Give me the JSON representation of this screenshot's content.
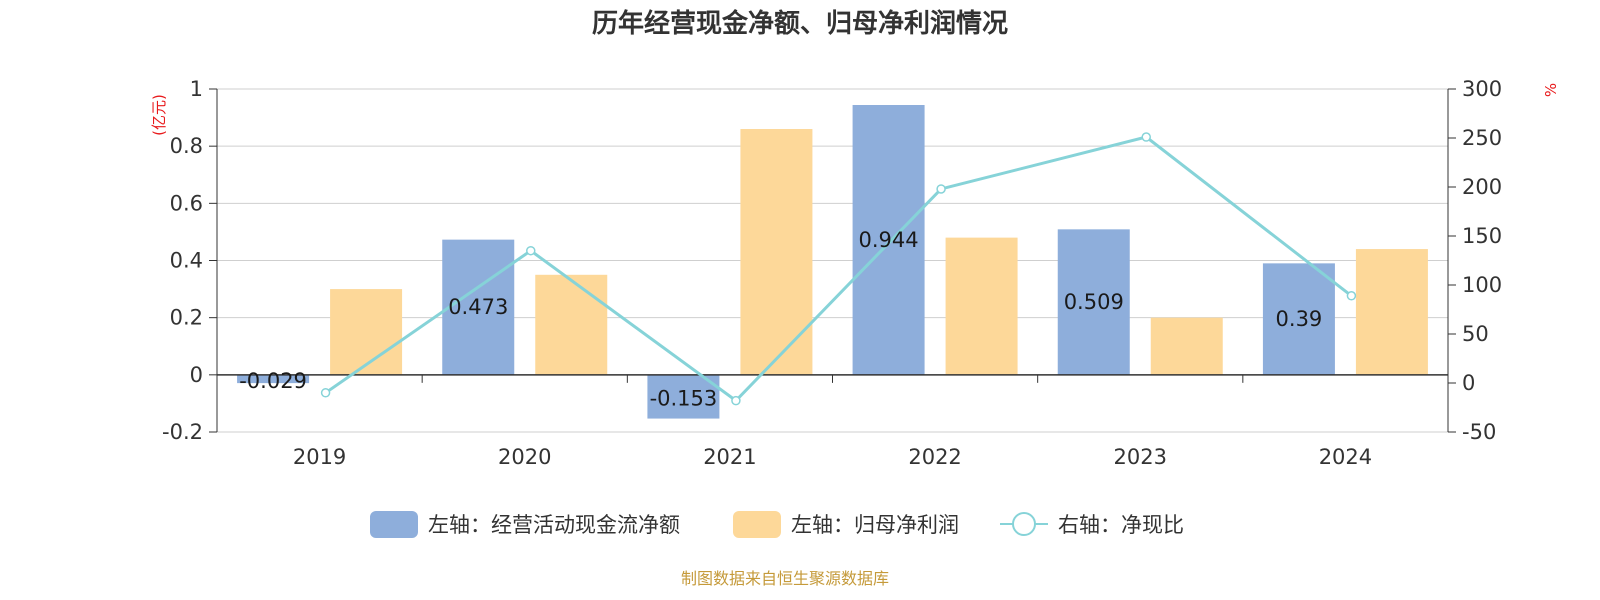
{
  "chart_data": {
    "type": "bar",
    "title": "历年经营现金净额、归母净利润情况",
    "categories": [
      "2019",
      "2020",
      "2021",
      "2022",
      "2023",
      "2024"
    ],
    "series": [
      {
        "name": "左轴：经营活动现金流净额",
        "kind": "bar",
        "axis": "left",
        "values": [
          -0.029,
          0.473,
          -0.153,
          0.944,
          0.509,
          0.39
        ],
        "color": "#8eaedb",
        "labels": [
          "-0.029",
          "0.473",
          "-0.153",
          "0.944",
          "0.509",
          "0.39"
        ]
      },
      {
        "name": "左轴：归母净利润",
        "kind": "bar",
        "axis": "left",
        "values": [
          0.3,
          0.35,
          0.86,
          0.48,
          0.2,
          0.44
        ],
        "color": "#fdd899"
      },
      {
        "name": "右轴：净现比",
        "kind": "line",
        "axis": "right",
        "values": [
          -10,
          135,
          -18,
          198,
          251,
          89
        ],
        "color": "#86d3d8"
      }
    ],
    "y_left": {
      "unit": "(亿元)",
      "ylim": [
        -0.2,
        1
      ],
      "ticks": [
        "-0.2",
        "0",
        "0.2",
        "0.4",
        "0.6",
        "0.8",
        "1"
      ]
    },
    "y_right": {
      "unit": "%",
      "ylim": [
        -50,
        300
      ],
      "ticks": [
        "-50",
        "0",
        "50",
        "100",
        "150",
        "200",
        "250",
        "300"
      ]
    },
    "unit_color": "#e8191b",
    "grid": true,
    "legend_position": "bottom"
  },
  "source": {
    "text": "制图数据来自恒生聚源数据库",
    "color": "#c59a3a"
  }
}
